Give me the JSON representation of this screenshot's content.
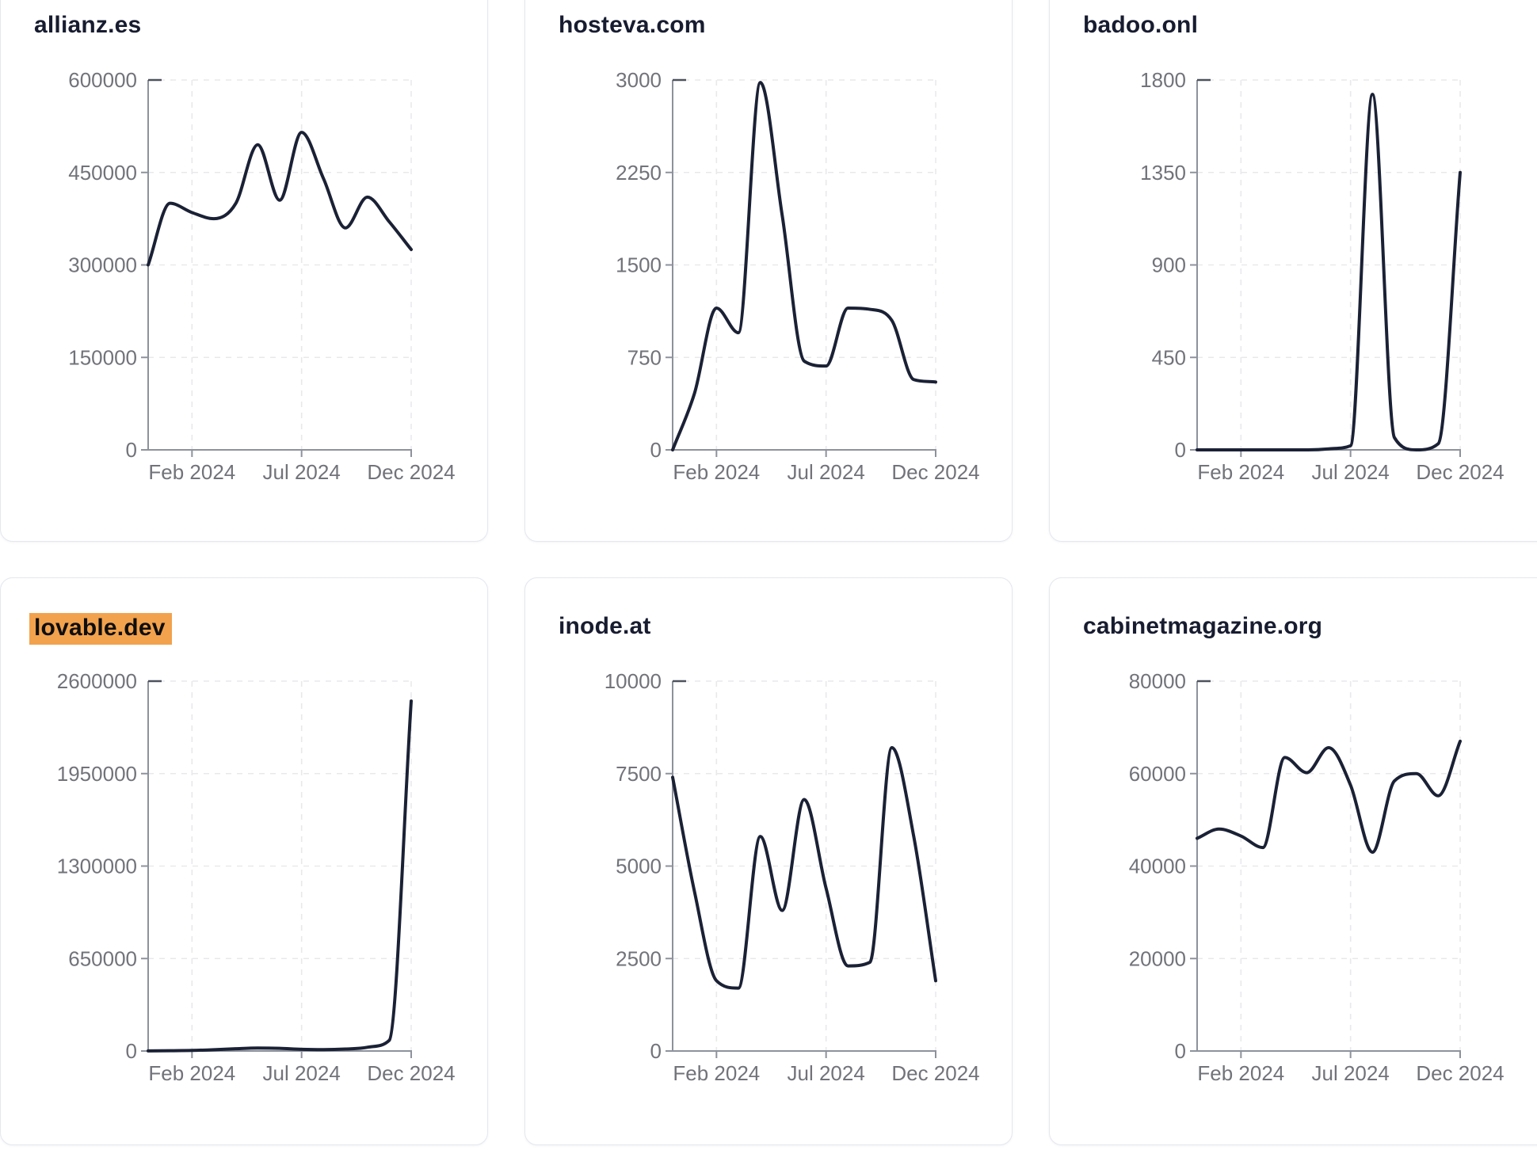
{
  "page": {
    "background": "#ffffff",
    "period_start": "Dec 2023",
    "period_end": "Dec 2024"
  },
  "style": {
    "line_color": "#1b2135",
    "grid_color": "#e9e9ec",
    "axis_color": "#8d929c",
    "axis_cap_color": "#4e525e",
    "tick_label_color": "#72737a",
    "title_color": "#171c30",
    "highlight_bg": "#f2a24d",
    "highlight_text": "#0e0e0e",
    "card_bg": "#ffffff",
    "card_border": "#e4e7ee"
  },
  "chart_data": [
    {
      "type": "line",
      "title": "allianz.es",
      "highlighted": false,
      "x": [
        "Dec 2023",
        "Jan 2024",
        "Feb 2024",
        "Mar 2024",
        "Apr 2024",
        "May 2024",
        "Jun 2024",
        "Jul 2024",
        "Aug 2024",
        "Sep 2024",
        "Oct 2024",
        "Nov 2024",
        "Dec 2024"
      ],
      "x_axis_ticks": [
        "Feb 2024",
        "Jul 2024",
        "Dec 2024"
      ],
      "y_ticks": [
        0,
        150000,
        300000,
        450000,
        600000
      ],
      "ylim": [
        0,
        600000
      ],
      "grid": true,
      "values": [
        300000,
        400000,
        385000,
        375000,
        400000,
        495000,
        405000,
        515000,
        440000,
        360000,
        410000,
        370000,
        325000
      ]
    },
    {
      "type": "line",
      "title": "hosteva.com",
      "highlighted": false,
      "x": [
        "Dec 2023",
        "Jan 2024",
        "Feb 2024",
        "Mar 2024",
        "Apr 2024",
        "May 2024",
        "Jun 2024",
        "Jul 2024",
        "Aug 2024",
        "Sep 2024",
        "Oct 2024",
        "Nov 2024",
        "Dec 2024"
      ],
      "x_axis_ticks": [
        "Feb 2024",
        "Jul 2024",
        "Dec 2024"
      ],
      "y_ticks": [
        0,
        750,
        1500,
        2250,
        3000
      ],
      "ylim": [
        0,
        3000
      ],
      "grid": true,
      "values": [
        0,
        460,
        1150,
        950,
        2980,
        1900,
        720,
        680,
        1150,
        1140,
        1050,
        570,
        550
      ]
    },
    {
      "type": "line",
      "title": "badoo.onl",
      "highlighted": false,
      "x": [
        "Dec 2023",
        "Jan 2024",
        "Feb 2024",
        "Mar 2024",
        "Apr 2024",
        "May 2024",
        "Jun 2024",
        "Jul 2024",
        "Aug 2024",
        "Sep 2024",
        "Oct 2024",
        "Nov 2024",
        "Dec 2024"
      ],
      "x_axis_ticks": [
        "Feb 2024",
        "Jul 2024",
        "Dec 2024"
      ],
      "y_ticks": [
        0,
        450,
        900,
        1350,
        1800
      ],
      "ylim": [
        0,
        1800
      ],
      "grid": true,
      "values": [
        0,
        0,
        0,
        0,
        0,
        0,
        5,
        20,
        1730,
        60,
        0,
        30,
        1350
      ]
    },
    {
      "type": "line",
      "title": "lovable.dev",
      "highlighted": true,
      "x": [
        "Dec 2023",
        "Jan 2024",
        "Feb 2024",
        "Mar 2024",
        "Apr 2024",
        "May 2024",
        "Jun 2024",
        "Jul 2024",
        "Aug 2024",
        "Sep 2024",
        "Oct 2024",
        "Nov 2024",
        "Dec 2024"
      ],
      "x_axis_ticks": [
        "Feb 2024",
        "Jul 2024",
        "Dec 2024"
      ],
      "y_ticks": [
        0,
        650000,
        1300000,
        1950000,
        2600000
      ],
      "ylim": [
        0,
        2600000
      ],
      "grid": true,
      "values": [
        1000,
        2000,
        4000,
        9000,
        16000,
        21000,
        19000,
        12000,
        10000,
        14000,
        26000,
        75000,
        2460000
      ]
    },
    {
      "type": "line",
      "title": "inode.at",
      "highlighted": false,
      "x": [
        "Dec 2023",
        "Jan 2024",
        "Feb 2024",
        "Mar 2024",
        "Apr 2024",
        "May 2024",
        "Jun 2024",
        "Jul 2024",
        "Aug 2024",
        "Sep 2024",
        "Oct 2024",
        "Nov 2024",
        "Dec 2024"
      ],
      "x_axis_ticks": [
        "Feb 2024",
        "Jul 2024",
        "Dec 2024"
      ],
      "y_ticks": [
        0,
        2500,
        5000,
        7500,
        10000
      ],
      "ylim": [
        0,
        10000
      ],
      "grid": true,
      "values": [
        7400,
        4300,
        1900,
        1700,
        5800,
        3800,
        6800,
        4400,
        2300,
        2400,
        8200,
        5800,
        1900
      ]
    },
    {
      "type": "line",
      "title": "cabinetmagazine.org",
      "highlighted": false,
      "x": [
        "Dec 2023",
        "Jan 2024",
        "Feb 2024",
        "Mar 2024",
        "Apr 2024",
        "May 2024",
        "Jun 2024",
        "Jul 2024",
        "Aug 2024",
        "Sep 2024",
        "Oct 2024",
        "Nov 2024",
        "Dec 2024"
      ],
      "x_axis_ticks": [
        "Feb 2024",
        "Jul 2024",
        "Dec 2024"
      ],
      "y_ticks": [
        0,
        20000,
        40000,
        60000,
        80000
      ],
      "ylim": [
        0,
        80000
      ],
      "grid": true,
      "values": [
        46000,
        48000,
        46500,
        44000,
        63500,
        60200,
        65600,
        57500,
        43000,
        58400,
        60000,
        55200,
        67000
      ]
    }
  ]
}
